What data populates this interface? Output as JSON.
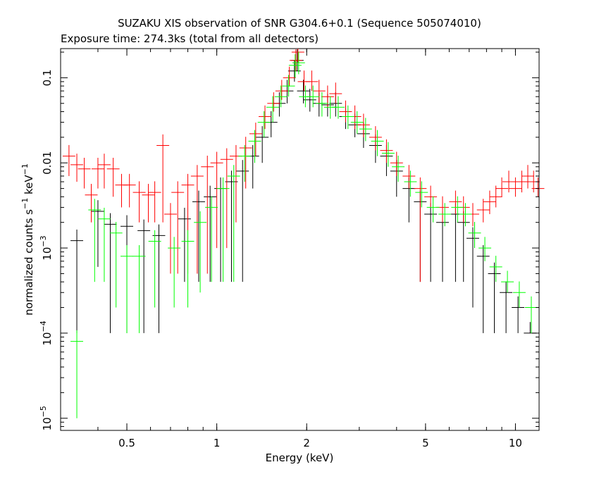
{
  "chart_data": {
    "type": "scatter",
    "title": "SUZAKU XIS observation of SNR G304.6+0.1 (Sequence 505074010)",
    "subtitle": "Exposure time: 274.3ks (total from all detectors)",
    "xlabel": "Energy (keV)",
    "ylabel_parts": {
      "prefix": "normalized counts s",
      "exp1": "−1",
      "mid": " keV",
      "exp2": "−1"
    },
    "x_scale": "log",
    "y_scale": "log",
    "xlim": [
      0.3,
      12
    ],
    "ylim": [
      7.2e-06,
      0.22
    ],
    "x_ticks": [
      {
        "value": 0.5,
        "label": "0.5"
      },
      {
        "value": 1,
        "label": "1"
      },
      {
        "value": 2,
        "label": "2"
      },
      {
        "value": 5,
        "label": "5"
      },
      {
        "value": 10,
        "label": "10"
      }
    ],
    "y_ticks": [
      {
        "value": 0.1,
        "base": "0.1",
        "exp": ""
      },
      {
        "value": 0.01,
        "base": "0.01",
        "exp": ""
      },
      {
        "value": 0.001,
        "base": "10",
        "exp": "−3"
      },
      {
        "value": 0.0001,
        "base": "10",
        "exp": "−4"
      },
      {
        "value": 1e-05,
        "base": "10",
        "exp": "−5"
      }
    ],
    "series": [
      {
        "color": "#000000",
        "points": [
          [
            0.34,
            0.00122,
            0.0001
          ],
          [
            0.4,
            0.0027,
            0.0006
          ],
          [
            0.44,
            0.0019,
            0.0001
          ],
          [
            0.5,
            0.0018,
            0.0001
          ],
          [
            0.57,
            0.0016,
            0.0001
          ],
          [
            0.64,
            0.0014,
            0.0001
          ],
          [
            0.78,
            0.0022,
            0.0004
          ],
          [
            0.87,
            0.0035,
            0.0004
          ],
          [
            0.95,
            0.004,
            0.0004
          ],
          [
            1.03,
            0.005,
            0.0004
          ],
          [
            1.12,
            0.006,
            0.0004
          ],
          [
            1.22,
            0.008,
            0.0004
          ],
          [
            1.32,
            0.012,
            0.005
          ],
          [
            1.42,
            0.02,
            0.01
          ],
          [
            1.52,
            0.03,
            0.02
          ],
          [
            1.62,
            0.05,
            0.035
          ],
          [
            1.72,
            0.07,
            0.05
          ],
          [
            1.82,
            0.12,
            0.09
          ],
          [
            1.86,
            0.16,
            0.12
          ],
          [
            1.95,
            0.07,
            0.05
          ],
          [
            2.05,
            0.055,
            0.04
          ],
          [
            2.2,
            0.05,
            0.035
          ],
          [
            2.35,
            0.048,
            0.035
          ],
          [
            2.5,
            0.05,
            0.035
          ],
          [
            2.7,
            0.035,
            0.025
          ],
          [
            2.9,
            0.028,
            0.02
          ],
          [
            3.1,
            0.022,
            0.015
          ],
          [
            3.4,
            0.016,
            0.01
          ],
          [
            3.7,
            0.012,
            0.007
          ],
          [
            4.0,
            0.008,
            0.004
          ],
          [
            4.4,
            0.005,
            0.002
          ],
          [
            4.8,
            0.0035,
            0.0004
          ],
          [
            5.2,
            0.0025,
            0.0004
          ],
          [
            5.7,
            0.002,
            0.0004
          ],
          [
            6.3,
            0.0025,
            0.0004
          ],
          [
            6.7,
            0.002,
            0.0004
          ],
          [
            7.2,
            0.0013,
            0.0002
          ],
          [
            7.8,
            0.0008,
            0.0001
          ],
          [
            8.5,
            0.0005,
            0.0001
          ],
          [
            9.3,
            0.0003,
            0.0001
          ],
          [
            10.2,
            0.0002,
            0.0001
          ],
          [
            11.2,
            0.0001,
            0.0001
          ]
        ]
      },
      {
        "color": "#ff0000",
        "points": [
          [
            0.32,
            0.012,
            0.007
          ],
          [
            0.34,
            0.0095,
            0.006
          ],
          [
            0.36,
            0.0085,
            0.005
          ],
          [
            0.38,
            0.0042,
            0.002
          ],
          [
            0.4,
            0.0085,
            0.005
          ],
          [
            0.42,
            0.0095,
            0.005
          ],
          [
            0.45,
            0.0085,
            0.004
          ],
          [
            0.48,
            0.0055,
            0.003
          ],
          [
            0.51,
            0.0055,
            0.003
          ],
          [
            0.55,
            0.0045,
            0.002
          ],
          [
            0.59,
            0.0042,
            0.002
          ],
          [
            0.62,
            0.0045,
            0.002
          ],
          [
            0.66,
            0.016,
            0.002
          ],
          [
            0.7,
            0.0025,
            0.0005
          ],
          [
            0.74,
            0.0045,
            0.0005
          ],
          [
            0.8,
            0.0055,
            0.0005
          ],
          [
            0.86,
            0.007,
            0.0005
          ],
          [
            0.93,
            0.009,
            0.0005
          ],
          [
            1.0,
            0.01,
            0.001
          ],
          [
            1.08,
            0.011,
            0.001
          ],
          [
            1.16,
            0.012,
            0.002
          ],
          [
            1.25,
            0.015,
            0.005
          ],
          [
            1.35,
            0.022,
            0.012
          ],
          [
            1.45,
            0.035,
            0.025
          ],
          [
            1.55,
            0.05,
            0.04
          ],
          [
            1.65,
            0.07,
            0.055
          ],
          [
            1.75,
            0.1,
            0.08
          ],
          [
            1.84,
            0.16,
            0.12
          ],
          [
            1.87,
            0.2,
            0.15
          ],
          [
            1.96,
            0.09,
            0.07
          ],
          [
            2.08,
            0.09,
            0.07
          ],
          [
            2.2,
            0.07,
            0.05
          ],
          [
            2.35,
            0.06,
            0.045
          ],
          [
            2.5,
            0.065,
            0.05
          ],
          [
            2.7,
            0.04,
            0.03
          ],
          [
            2.9,
            0.035,
            0.025
          ],
          [
            3.1,
            0.028,
            0.02
          ],
          [
            3.4,
            0.02,
            0.014
          ],
          [
            3.7,
            0.014,
            0.01
          ],
          [
            4.0,
            0.01,
            0.007
          ],
          [
            4.4,
            0.007,
            0.005
          ],
          [
            4.8,
            0.005,
            0.0004
          ],
          [
            5.2,
            0.004,
            0.003
          ],
          [
            5.7,
            0.003,
            0.002
          ],
          [
            6.3,
            0.0035,
            0.0025
          ],
          [
            6.7,
            0.003,
            0.002
          ],
          [
            7.2,
            0.0025,
            0.0018
          ],
          [
            7.8,
            0.0028,
            0.002
          ],
          [
            8.2,
            0.0035,
            0.0025
          ],
          [
            8.6,
            0.004,
            0.003
          ],
          [
            9.0,
            0.005,
            0.004
          ],
          [
            9.5,
            0.006,
            0.0045
          ],
          [
            10.0,
            0.005,
            0.004
          ],
          [
            10.5,
            0.006,
            0.0045
          ],
          [
            11.0,
            0.007,
            0.005
          ],
          [
            11.5,
            0.006,
            0.0045
          ],
          [
            11.9,
            0.005,
            0.004
          ]
        ]
      },
      {
        "color": "#00ff00",
        "points": [
          [
            0.34,
            8e-05,
            1e-05
          ],
          [
            0.39,
            0.0028,
            0.0004
          ],
          [
            0.42,
            0.0022,
            0.0004
          ],
          [
            0.46,
            0.0015,
            0.0002
          ],
          [
            0.5,
            0.0008,
            0.0001
          ],
          [
            0.55,
            0.0008,
            0.0001
          ],
          [
            0.62,
            0.0012,
            0.0002
          ],
          [
            0.72,
            0.001,
            0.0002
          ],
          [
            0.8,
            0.0012,
            0.0002
          ],
          [
            0.88,
            0.002,
            0.0003
          ],
          [
            0.96,
            0.003,
            0.0004
          ],
          [
            1.05,
            0.005,
            0.0004
          ],
          [
            1.14,
            0.007,
            0.0004
          ],
          [
            1.24,
            0.012,
            0.006
          ],
          [
            1.34,
            0.018,
            0.01
          ],
          [
            1.44,
            0.03,
            0.02
          ],
          [
            1.54,
            0.045,
            0.03
          ],
          [
            1.64,
            0.06,
            0.045
          ],
          [
            1.74,
            0.08,
            0.06
          ],
          [
            1.83,
            0.14,
            0.1
          ],
          [
            1.88,
            0.15,
            0.11
          ],
          [
            1.98,
            0.06,
            0.045
          ],
          [
            2.1,
            0.06,
            0.045
          ],
          [
            2.25,
            0.05,
            0.035
          ],
          [
            2.4,
            0.045,
            0.033
          ],
          [
            2.55,
            0.045,
            0.033
          ],
          [
            2.75,
            0.035,
            0.025
          ],
          [
            2.95,
            0.03,
            0.022
          ],
          [
            3.15,
            0.025,
            0.018
          ],
          [
            3.45,
            0.018,
            0.012
          ],
          [
            3.75,
            0.013,
            0.009
          ],
          [
            4.05,
            0.009,
            0.006
          ],
          [
            4.45,
            0.006,
            0.004
          ],
          [
            4.85,
            0.0045,
            0.003
          ],
          [
            5.3,
            0.003,
            0.002
          ],
          [
            5.8,
            0.0025,
            0.0018
          ],
          [
            6.4,
            0.003,
            0.002
          ],
          [
            6.8,
            0.0025,
            0.0018
          ],
          [
            7.3,
            0.0015,
            0.001
          ],
          [
            7.9,
            0.001,
            0.0007
          ],
          [
            8.6,
            0.0006,
            0.0004
          ],
          [
            9.4,
            0.0004,
            0.0003
          ],
          [
            10.3,
            0.0003,
            0.0002
          ],
          [
            11.3,
            0.0002,
            0.0001
          ]
        ]
      }
    ]
  }
}
